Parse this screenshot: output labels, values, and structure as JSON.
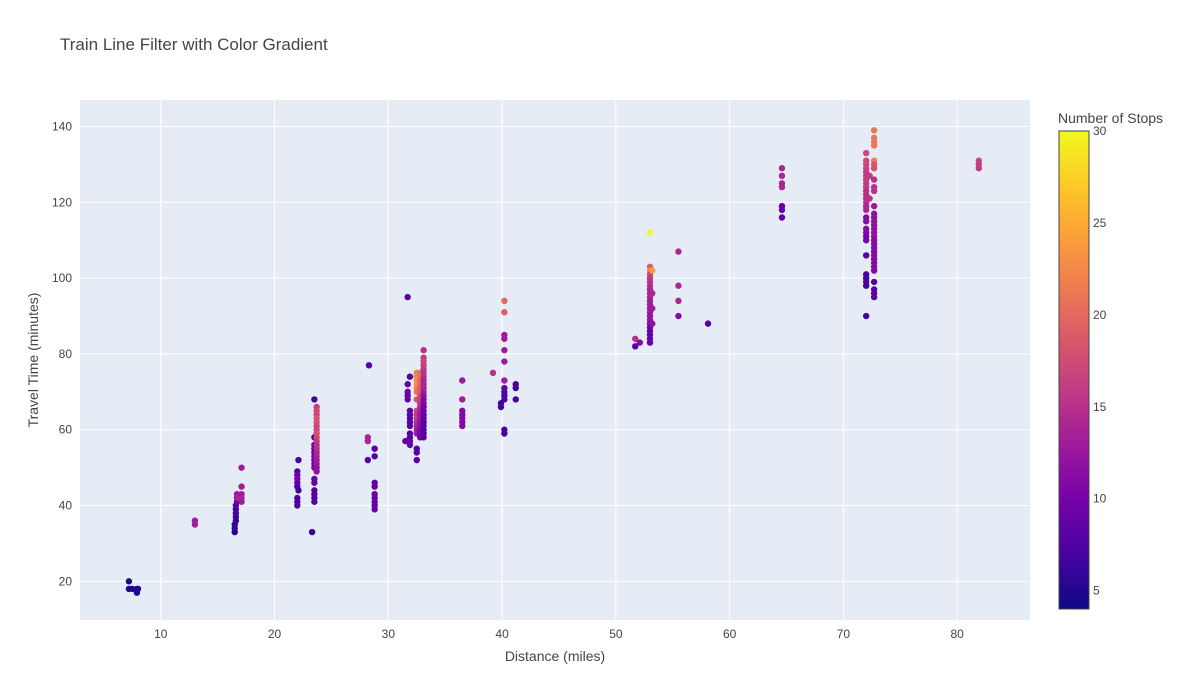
{
  "chart_data": {
    "type": "scatter",
    "title": "Train Line Filter with Color Gradient",
    "xlabel": "Distance (miles)",
    "ylabel": "Travel Time (minutes)",
    "xlim": [
      2.9,
      86.4
    ],
    "ylim": [
      9.8,
      147
    ],
    "x_ticks": [
      10,
      20,
      30,
      40,
      50,
      60,
      70,
      80
    ],
    "y_ticks": [
      20,
      40,
      60,
      80,
      100,
      120,
      140
    ],
    "grid": true,
    "colorbar": {
      "title": "Number of Stops",
      "range": [
        4,
        30
      ],
      "ticks": [
        5,
        10,
        15,
        20,
        25,
        30
      ],
      "colorscale": [
        "#0d0887",
        "#46039f",
        "#7201a8",
        "#9c179e",
        "#bd3786",
        "#d8576b",
        "#ed7953",
        "#fb9f3a",
        "#fdca26",
        "#f0f921"
      ]
    },
    "plot_bg": "#e5ecf6",
    "points": [
      [
        7.2,
        20,
        5
      ],
      [
        7.2,
        18,
        5
      ],
      [
        7.5,
        18,
        5
      ],
      [
        7.9,
        18,
        5
      ],
      [
        7.9,
        17,
        5
      ],
      [
        8.0,
        18,
        5
      ],
      [
        13.0,
        36,
        13
      ],
      [
        13.0,
        35,
        13
      ],
      [
        16.5,
        33,
        5
      ],
      [
        16.5,
        34,
        6
      ],
      [
        16.5,
        35,
        6
      ],
      [
        16.6,
        36,
        6
      ],
      [
        16.6,
        37,
        6
      ],
      [
        16.6,
        38,
        7
      ],
      [
        16.6,
        39,
        7
      ],
      [
        16.6,
        40,
        8
      ],
      [
        16.7,
        41,
        9
      ],
      [
        16.7,
        42,
        11
      ],
      [
        16.7,
        43,
        13
      ],
      [
        16.8,
        42,
        14
      ],
      [
        17.1,
        50,
        13
      ],
      [
        17.1,
        45,
        13
      ],
      [
        17.1,
        43,
        13
      ],
      [
        17.1,
        42,
        14
      ],
      [
        17.1,
        41,
        13
      ],
      [
        22.0,
        49,
        8
      ],
      [
        22.0,
        48,
        9
      ],
      [
        22.0,
        47,
        10
      ],
      [
        22.0,
        46,
        9
      ],
      [
        22.0,
        45,
        8
      ],
      [
        22.0,
        42,
        8
      ],
      [
        22.0,
        41,
        7
      ],
      [
        22.0,
        40,
        8
      ],
      [
        22.1,
        52,
        7
      ],
      [
        22.1,
        44,
        7
      ],
      [
        23.3,
        33,
        6
      ],
      [
        23.5,
        68,
        7
      ],
      [
        23.5,
        58,
        8
      ],
      [
        23.5,
        56,
        9
      ],
      [
        23.5,
        55,
        9
      ],
      [
        23.5,
        54,
        9
      ],
      [
        23.5,
        53,
        9
      ],
      [
        23.5,
        52,
        10
      ],
      [
        23.5,
        51,
        10
      ],
      [
        23.5,
        50,
        10
      ],
      [
        23.5,
        47,
        9
      ],
      [
        23.5,
        46,
        9
      ],
      [
        23.5,
        44,
        8
      ],
      [
        23.5,
        43,
        8
      ],
      [
        23.5,
        42,
        8
      ],
      [
        23.5,
        41,
        8
      ],
      [
        23.7,
        66,
        16
      ],
      [
        23.7,
        65,
        17
      ],
      [
        23.7,
        64,
        17
      ],
      [
        23.7,
        63,
        18
      ],
      [
        23.7,
        62,
        18
      ],
      [
        23.7,
        61,
        17
      ],
      [
        23.7,
        60,
        17
      ],
      [
        23.7,
        59,
        18
      ],
      [
        23.7,
        58,
        17
      ],
      [
        23.7,
        57,
        16
      ],
      [
        23.7,
        56,
        15
      ],
      [
        23.7,
        55,
        15
      ],
      [
        23.7,
        54,
        14
      ],
      [
        23.7,
        53,
        14
      ],
      [
        23.7,
        52,
        13
      ],
      [
        23.7,
        51,
        13
      ],
      [
        23.7,
        50,
        12
      ],
      [
        23.7,
        49,
        12
      ],
      [
        28.2,
        58,
        14
      ],
      [
        28.2,
        57,
        14
      ],
      [
        28.2,
        52,
        8
      ],
      [
        28.3,
        77,
        8
      ],
      [
        28.8,
        55,
        8
      ],
      [
        28.8,
        53,
        8
      ],
      [
        28.8,
        46,
        8
      ],
      [
        28.8,
        45,
        9
      ],
      [
        28.8,
        43,
        9
      ],
      [
        28.8,
        42,
        9
      ],
      [
        28.8,
        41,
        9
      ],
      [
        28.8,
        40,
        9
      ],
      [
        28.8,
        39,
        9
      ],
      [
        31.5,
        57,
        9
      ],
      [
        31.7,
        95,
        8
      ],
      [
        31.7,
        72,
        9
      ],
      [
        31.7,
        70,
        9
      ],
      [
        31.7,
        69,
        9
      ],
      [
        31.7,
        68,
        9
      ],
      [
        31.9,
        74,
        8
      ],
      [
        31.9,
        65,
        8
      ],
      [
        31.9,
        64,
        8
      ],
      [
        31.9,
        63,
        8
      ],
      [
        31.9,
        62,
        8
      ],
      [
        31.9,
        61,
        8
      ],
      [
        31.9,
        59,
        8
      ],
      [
        31.9,
        58,
        8
      ],
      [
        31.9,
        57,
        9
      ],
      [
        31.9,
        56,
        9
      ],
      [
        32.5,
        75,
        22
      ],
      [
        32.5,
        74,
        22
      ],
      [
        32.5,
        73,
        23
      ],
      [
        32.5,
        72,
        23
      ],
      [
        32.5,
        71,
        22
      ],
      [
        32.5,
        70,
        21
      ],
      [
        32.5,
        68,
        18
      ],
      [
        32.5,
        65,
        17
      ],
      [
        32.5,
        64,
        16
      ],
      [
        32.5,
        63,
        16
      ],
      [
        32.5,
        62,
        15
      ],
      [
        32.5,
        61,
        14
      ],
      [
        32.5,
        60,
        13
      ],
      [
        32.5,
        59,
        13
      ],
      [
        32.5,
        55,
        8
      ],
      [
        32.5,
        54,
        8
      ],
      [
        32.5,
        52,
        8
      ],
      [
        32.8,
        75,
        21
      ],
      [
        32.8,
        74,
        21
      ],
      [
        32.8,
        73,
        20
      ],
      [
        32.8,
        72,
        20
      ],
      [
        32.8,
        71,
        19
      ],
      [
        32.8,
        70,
        19
      ],
      [
        32.8,
        69,
        18
      ],
      [
        32.8,
        68,
        17
      ],
      [
        32.8,
        67,
        16
      ],
      [
        32.8,
        66,
        15
      ],
      [
        32.8,
        65,
        14
      ],
      [
        32.8,
        64,
        13
      ],
      [
        32.8,
        63,
        13
      ],
      [
        32.8,
        62,
        12
      ],
      [
        32.8,
        61,
        12
      ],
      [
        32.8,
        60,
        11
      ],
      [
        32.8,
        59,
        10
      ],
      [
        32.8,
        58,
        10
      ],
      [
        33.1,
        81,
        15
      ],
      [
        33.1,
        79,
        16
      ],
      [
        33.1,
        78,
        17
      ],
      [
        33.1,
        77,
        16
      ],
      [
        33.1,
        76,
        16
      ],
      [
        33.1,
        75,
        15
      ],
      [
        33.1,
        74,
        15
      ],
      [
        33.1,
        73,
        14
      ],
      [
        33.1,
        72,
        14
      ],
      [
        33.1,
        71,
        14
      ],
      [
        33.1,
        70,
        13
      ],
      [
        33.1,
        69,
        12
      ],
      [
        33.1,
        68,
        11
      ],
      [
        33.1,
        67,
        11
      ],
      [
        33.1,
        66,
        10
      ],
      [
        33.1,
        65,
        10
      ],
      [
        33.1,
        64,
        9
      ],
      [
        33.1,
        63,
        9
      ],
      [
        33.1,
        62,
        8
      ],
      [
        33.1,
        61,
        8
      ],
      [
        33.1,
        60,
        8
      ],
      [
        33.1,
        59,
        8
      ],
      [
        33.1,
        58,
        8
      ],
      [
        36.5,
        73,
        13
      ],
      [
        36.5,
        68,
        13
      ],
      [
        36.5,
        65,
        11
      ],
      [
        36.5,
        64,
        11
      ],
      [
        36.5,
        63,
        11
      ],
      [
        36.5,
        62,
        11
      ],
      [
        36.5,
        61,
        11
      ],
      [
        39.2,
        75,
        15
      ],
      [
        39.9,
        67,
        7
      ],
      [
        39.9,
        66,
        7
      ],
      [
        40.2,
        94,
        20
      ],
      [
        40.2,
        91,
        19
      ],
      [
        40.2,
        85,
        13
      ],
      [
        40.2,
        84,
        13
      ],
      [
        40.2,
        81,
        13
      ],
      [
        40.2,
        78,
        13
      ],
      [
        40.2,
        73,
        13
      ],
      [
        40.2,
        71,
        9
      ],
      [
        40.2,
        70,
        8
      ],
      [
        40.2,
        69,
        7
      ],
      [
        40.2,
        68,
        7
      ],
      [
        40.2,
        60,
        7
      ],
      [
        40.2,
        59,
        7
      ],
      [
        41.2,
        72,
        7
      ],
      [
        41.2,
        71,
        7
      ],
      [
        41.2,
        68,
        7
      ],
      [
        51.7,
        84,
        15
      ],
      [
        51.7,
        82,
        8
      ],
      [
        52.1,
        83,
        11
      ],
      [
        53.0,
        112,
        30
      ],
      [
        53.0,
        103,
        19
      ],
      [
        53.0,
        102,
        22
      ],
      [
        53.0,
        101,
        17
      ],
      [
        53.0,
        100,
        16
      ],
      [
        53.0,
        99,
        15
      ],
      [
        53.0,
        98,
        15
      ],
      [
        53.0,
        97,
        14
      ],
      [
        53.0,
        96,
        14
      ],
      [
        53.0,
        95,
        14
      ],
      [
        53.0,
        94,
        13
      ],
      [
        53.0,
        93,
        13
      ],
      [
        53.0,
        92,
        13
      ],
      [
        53.0,
        91,
        13
      ],
      [
        53.0,
        90,
        12
      ],
      [
        53.0,
        89,
        12
      ],
      [
        53.0,
        88,
        11
      ],
      [
        53.0,
        87,
        10
      ],
      [
        53.0,
        86,
        9
      ],
      [
        53.0,
        85,
        9
      ],
      [
        53.0,
        84,
        9
      ],
      [
        53.0,
        83,
        9
      ],
      [
        53.2,
        102,
        24
      ],
      [
        53.2,
        96,
        14
      ],
      [
        53.2,
        92,
        13
      ],
      [
        53.2,
        88,
        12
      ],
      [
        55.5,
        107,
        14
      ],
      [
        55.5,
        98,
        14
      ],
      [
        55.5,
        94,
        14
      ],
      [
        55.5,
        90,
        11
      ],
      [
        58.1,
        88,
        8
      ],
      [
        64.6,
        129,
        14
      ],
      [
        64.6,
        127,
        14
      ],
      [
        64.6,
        125,
        14
      ],
      [
        64.6,
        124,
        14
      ],
      [
        64.6,
        119,
        9
      ],
      [
        64.6,
        118,
        9
      ],
      [
        64.6,
        116,
        9
      ],
      [
        72.0,
        133,
        17
      ],
      [
        72.0,
        131,
        17
      ],
      [
        72.0,
        130,
        17
      ],
      [
        72.0,
        129,
        17
      ],
      [
        72.0,
        128,
        16
      ],
      [
        72.0,
        127,
        16
      ],
      [
        72.0,
        126,
        16
      ],
      [
        72.0,
        125,
        16
      ],
      [
        72.0,
        124,
        16
      ],
      [
        72.0,
        123,
        15
      ],
      [
        72.0,
        122,
        15
      ],
      [
        72.0,
        121,
        15
      ],
      [
        72.0,
        120,
        15
      ],
      [
        72.0,
        119,
        14
      ],
      [
        72.0,
        118,
        14
      ],
      [
        72.0,
        116,
        11
      ],
      [
        72.0,
        115,
        11
      ],
      [
        72.0,
        113,
        11
      ],
      [
        72.0,
        112,
        11
      ],
      [
        72.0,
        111,
        10
      ],
      [
        72.0,
        110,
        10
      ],
      [
        72.0,
        106,
        8
      ],
      [
        72.0,
        101,
        7
      ],
      [
        72.0,
        100,
        7
      ],
      [
        72.0,
        99,
        7
      ],
      [
        72.0,
        98,
        7
      ],
      [
        72.0,
        90,
        7
      ],
      [
        72.3,
        127,
        16
      ],
      [
        72.3,
        121,
        15
      ],
      [
        72.7,
        139,
        21
      ],
      [
        72.7,
        137,
        21
      ],
      [
        72.7,
        136,
        21
      ],
      [
        72.7,
        135,
        21
      ],
      [
        72.7,
        131,
        22
      ],
      [
        72.7,
        130,
        18
      ],
      [
        72.7,
        129,
        18
      ],
      [
        72.7,
        126,
        15
      ],
      [
        72.7,
        124,
        15
      ],
      [
        72.7,
        123,
        15
      ],
      [
        72.7,
        119,
        13
      ],
      [
        72.7,
        117,
        12
      ],
      [
        72.7,
        116,
        12
      ],
      [
        72.7,
        115,
        12
      ],
      [
        72.7,
        114,
        12
      ],
      [
        72.7,
        113,
        12
      ],
      [
        72.7,
        112,
        12
      ],
      [
        72.7,
        111,
        12
      ],
      [
        72.7,
        110,
        11
      ],
      [
        72.7,
        109,
        11
      ],
      [
        72.7,
        108,
        11
      ],
      [
        72.7,
        107,
        11
      ],
      [
        72.7,
        106,
        11
      ],
      [
        72.7,
        105,
        11
      ],
      [
        72.7,
        104,
        11
      ],
      [
        72.7,
        103,
        11
      ],
      [
        72.7,
        102,
        11
      ],
      [
        72.7,
        99,
        8
      ],
      [
        72.7,
        97,
        8
      ],
      [
        72.7,
        96,
        8
      ],
      [
        72.7,
        95,
        8
      ],
      [
        81.9,
        131,
        17
      ],
      [
        81.9,
        130,
        16
      ],
      [
        81.9,
        129,
        16
      ]
    ]
  }
}
